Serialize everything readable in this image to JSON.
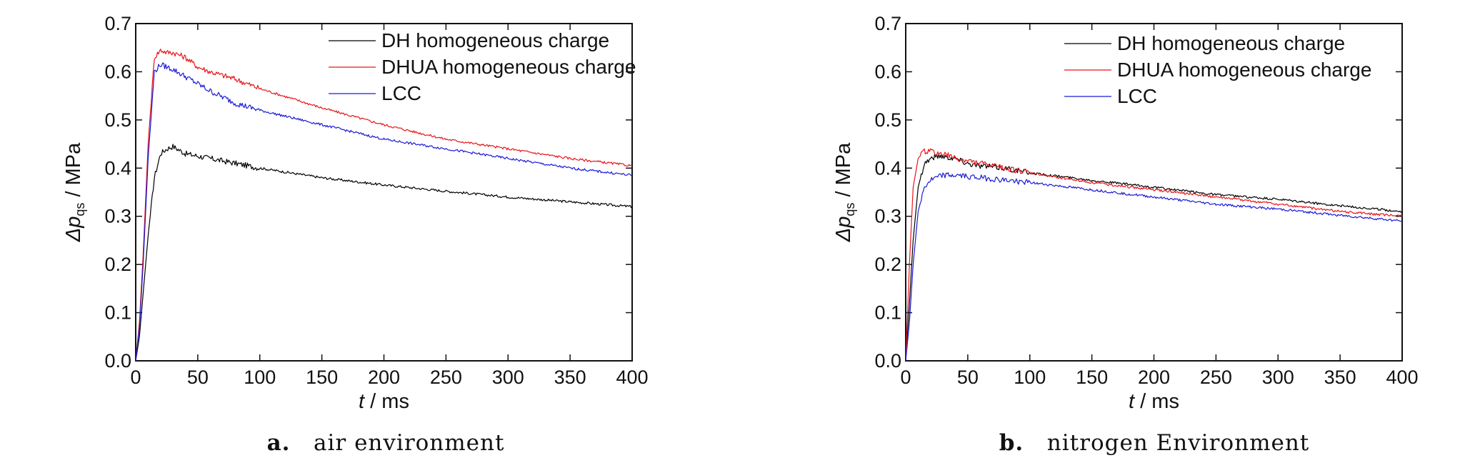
{
  "chart_data": [
    {
      "type": "line",
      "caption_letter": "a.",
      "caption_text": "air environment",
      "xlabel_var": "t",
      "xlabel_unit": " / ms",
      "ylabel_delta": "Δ",
      "ylabel_var": "p",
      "ylabel_sub": "qs",
      "ylabel_unit": " / MPa",
      "xlim": [
        0,
        400
      ],
      "ylim": [
        0,
        0.7
      ],
      "x_ticks": [
        "0",
        "50",
        "100",
        "150",
        "200",
        "250",
        "300",
        "350",
        "400"
      ],
      "y_ticks": [
        "0.0",
        "0.1",
        "0.2",
        "0.3",
        "0.4",
        "0.5",
        "0.6",
        "0.7"
      ],
      "legend_position": "top-right",
      "grid": false,
      "series": [
        {
          "name": "DH homogeneous charge",
          "color": "#000000",
          "x": [
            0,
            3,
            6,
            10,
            15,
            20,
            25,
            30,
            40,
            50,
            60,
            80,
            100,
            150,
            200,
            250,
            300,
            350,
            400
          ],
          "y": [
            0,
            0.05,
            0.14,
            0.26,
            0.38,
            0.43,
            0.44,
            0.445,
            0.43,
            0.425,
            0.42,
            0.41,
            0.4,
            0.38,
            0.365,
            0.352,
            0.34,
            0.33,
            0.32
          ]
        },
        {
          "name": "DHUA homogeneous charge",
          "color": "#e8151b",
          "x": [
            0,
            3,
            6,
            10,
            15,
            20,
            25,
            30,
            40,
            50,
            60,
            80,
            100,
            150,
            200,
            250,
            300,
            350,
            400
          ],
          "y": [
            0,
            0.08,
            0.22,
            0.45,
            0.63,
            0.645,
            0.64,
            0.64,
            0.63,
            0.61,
            0.6,
            0.585,
            0.565,
            0.525,
            0.49,
            0.46,
            0.44,
            0.42,
            0.405
          ]
        },
        {
          "name": "LCC",
          "color": "#1a1ad6",
          "x": [
            0,
            3,
            6,
            10,
            15,
            20,
            25,
            30,
            40,
            50,
            60,
            80,
            100,
            150,
            200,
            250,
            300,
            350,
            400
          ],
          "y": [
            0,
            0.07,
            0.2,
            0.42,
            0.6,
            0.615,
            0.61,
            0.605,
            0.59,
            0.575,
            0.56,
            0.535,
            0.52,
            0.49,
            0.46,
            0.44,
            0.42,
            0.4,
            0.385
          ]
        }
      ]
    },
    {
      "type": "line",
      "caption_letter": "b.",
      "caption_text": "nitrogen Environment",
      "xlabel_var": "t",
      "xlabel_unit": " / ms",
      "ylabel_delta": "Δ",
      "ylabel_var": "p",
      "ylabel_sub": "qs",
      "ylabel_unit": " / MPa",
      "xlim": [
        0,
        400
      ],
      "ylim": [
        0,
        0.7
      ],
      "x_ticks": [
        "0",
        "50",
        "100",
        "150",
        "200",
        "250",
        "300",
        "350",
        "400"
      ],
      "y_ticks": [
        "0.0",
        "0.1",
        "0.2",
        "0.3",
        "0.4",
        "0.5",
        "0.6",
        "0.7"
      ],
      "legend_position": "top-right",
      "grid": false,
      "series": [
        {
          "name": "DH homogeneous charge",
          "color": "#000000",
          "x": [
            0,
            3,
            6,
            10,
            15,
            20,
            25,
            30,
            40,
            50,
            60,
            80,
            100,
            150,
            200,
            250,
            300,
            350,
            400
          ],
          "y": [
            0,
            0.12,
            0.25,
            0.36,
            0.41,
            0.42,
            0.425,
            0.425,
            0.42,
            0.41,
            0.405,
            0.4,
            0.39,
            0.375,
            0.36,
            0.345,
            0.335,
            0.322,
            0.31
          ]
        },
        {
          "name": "DHUA homogeneous charge",
          "color": "#e8151b",
          "x": [
            0,
            3,
            6,
            10,
            15,
            20,
            25,
            30,
            40,
            50,
            60,
            80,
            100,
            150,
            200,
            250,
            300,
            350,
            400
          ],
          "y": [
            0,
            0.2,
            0.36,
            0.42,
            0.435,
            0.435,
            0.43,
            0.43,
            0.42,
            0.415,
            0.41,
            0.4,
            0.39,
            0.37,
            0.355,
            0.34,
            0.325,
            0.31,
            0.3
          ]
        },
        {
          "name": "LCC",
          "color": "#1a1ad6",
          "x": [
            0,
            3,
            6,
            10,
            15,
            20,
            25,
            30,
            40,
            50,
            60,
            80,
            100,
            150,
            200,
            250,
            300,
            350,
            400
          ],
          "y": [
            0,
            0.08,
            0.2,
            0.31,
            0.36,
            0.375,
            0.38,
            0.385,
            0.385,
            0.383,
            0.38,
            0.375,
            0.37,
            0.355,
            0.34,
            0.325,
            0.315,
            0.302,
            0.29
          ]
        }
      ]
    }
  ]
}
